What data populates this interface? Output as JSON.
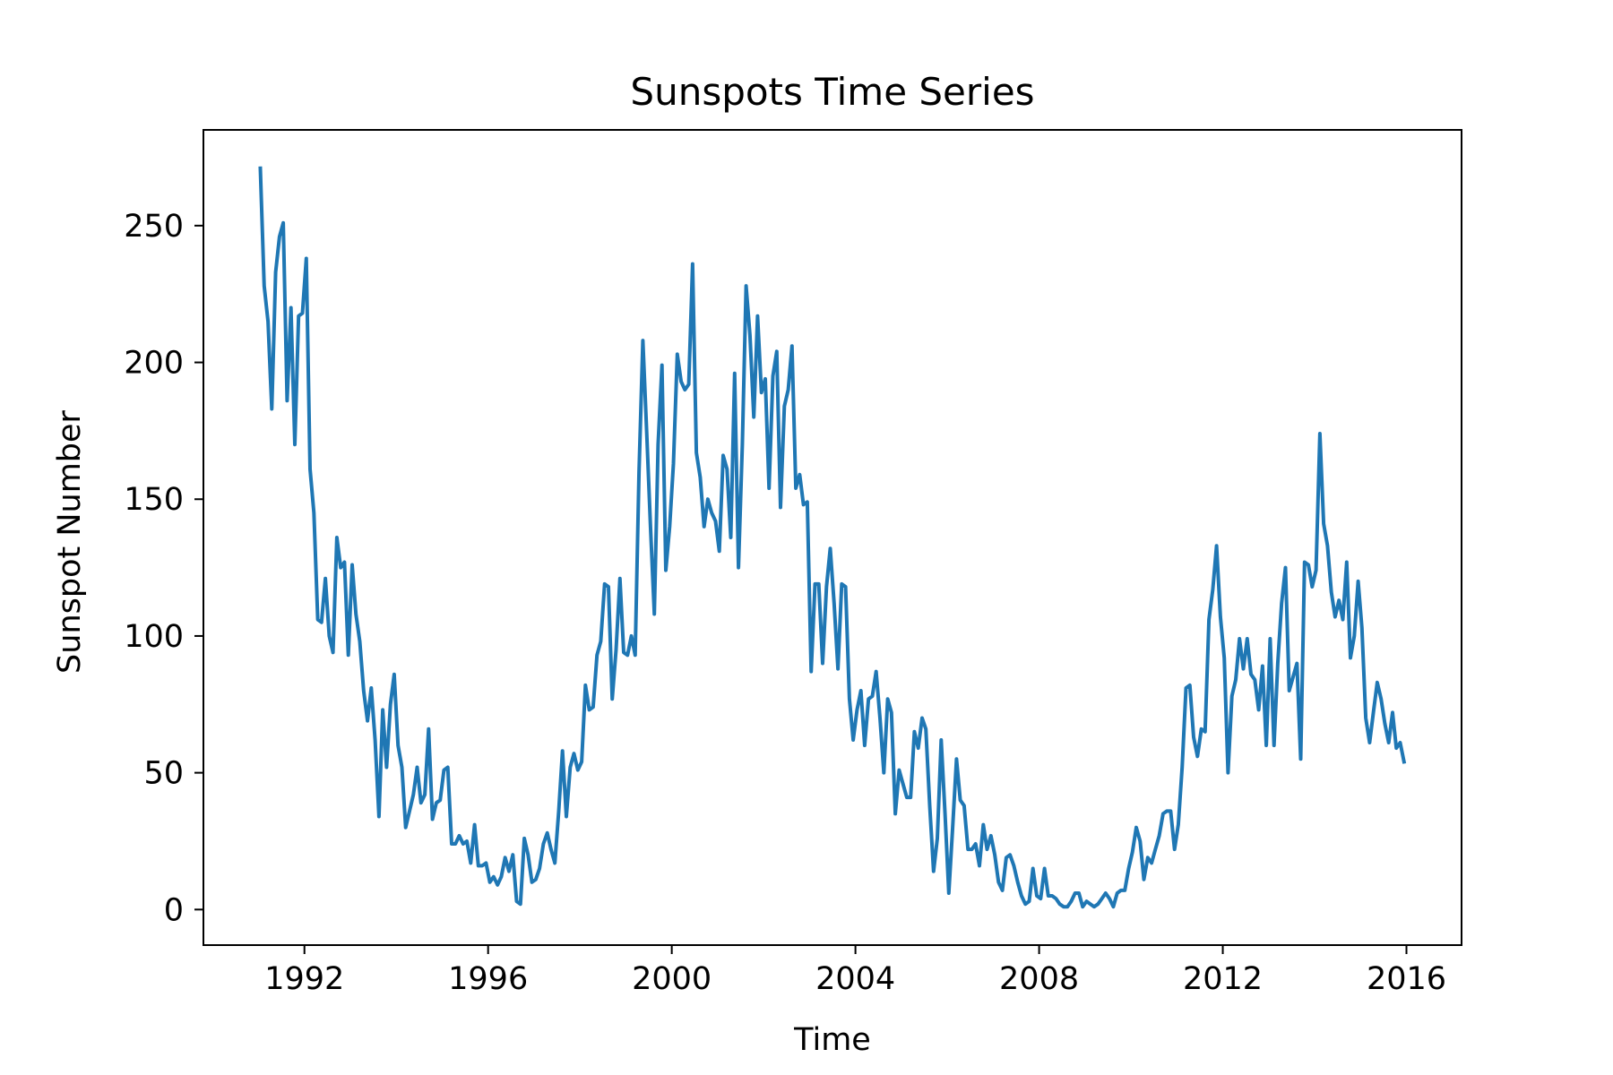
{
  "chart_data": {
    "type": "line",
    "title": "Sunspots Time Series",
    "xlabel": "Time",
    "ylabel": "Sunspot Number",
    "xlim": [
      1989.8,
      2017.2
    ],
    "ylim": [
      -13,
      285
    ],
    "x_ticks": [
      1992,
      1996,
      2000,
      2004,
      2008,
      2012,
      2016
    ],
    "y_ticks": [
      0,
      50,
      100,
      150,
      200,
      250
    ],
    "grid": false,
    "line_color": "#1f77b4",
    "x_start": 1991.04,
    "x_step": 0.0833,
    "series": [
      {
        "values": [
          271,
          228,
          215,
          183,
          233,
          246,
          251,
          186,
          220,
          170,
          217,
          218,
          238,
          161,
          145,
          106,
          105,
          121,
          100,
          94,
          136,
          125,
          127,
          93,
          126,
          108,
          98,
          80,
          69,
          81,
          62,
          34,
          73,
          52,
          75,
          86,
          60,
          52,
          30,
          36,
          42,
          52,
          39,
          42,
          66,
          33,
          39,
          40,
          51,
          52,
          24,
          24,
          27,
          24,
          25,
          17,
          31,
          16,
          16,
          17,
          10,
          12,
          9,
          12,
          19,
          14,
          20,
          3,
          2,
          26,
          20,
          10,
          11,
          15,
          24,
          28,
          22,
          17,
          36,
          58,
          34,
          52,
          57,
          51,
          54,
          82,
          73,
          74,
          93,
          98,
          119,
          118,
          77,
          95,
          121,
          94,
          93,
          100,
          93,
          160,
          208,
          175,
          140,
          108,
          170,
          199,
          124,
          140,
          163,
          203,
          193,
          190,
          192,
          236,
          167,
          158,
          140,
          150,
          145,
          142,
          131,
          166,
          161,
          136,
          196,
          125,
          170,
          228,
          210,
          180,
          217,
          189,
          194,
          154,
          195,
          204,
          147,
          184,
          190,
          206,
          154,
          159,
          148,
          149,
          87,
          119,
          119,
          90,
          118,
          132,
          112,
          88,
          119,
          118,
          77,
          62,
          73,
          80,
          60,
          77,
          78,
          87,
          70,
          50,
          77,
          72,
          35,
          51,
          46,
          41,
          41,
          65,
          59,
          70,
          66,
          38,
          14,
          26,
          62,
          35,
          6,
          30,
          55,
          40,
          38,
          22,
          22,
          24,
          16,
          31,
          22,
          27,
          20,
          10,
          7,
          19,
          20,
          16,
          10,
          5,
          2,
          3,
          15,
          5,
          4,
          15,
          5,
          5,
          4,
          2,
          1,
          1,
          3,
          6,
          6,
          1,
          3,
          2,
          1,
          2,
          4,
          6,
          4,
          1,
          6,
          7,
          7,
          15,
          21,
          30,
          25,
          11,
          19,
          17,
          22,
          27,
          35,
          36,
          36,
          22,
          31,
          52,
          81,
          82,
          63,
          56,
          66,
          65,
          106,
          117,
          133,
          107,
          92,
          50,
          78,
          84,
          99,
          88,
          99,
          86,
          84,
          73,
          89,
          60,
          99,
          60,
          90,
          112,
          125,
          80,
          85,
          90,
          55,
          127,
          126,
          118,
          124,
          174,
          141,
          133,
          116,
          107,
          113,
          106,
          127,
          92,
          100,
          120,
          103,
          70,
          61,
          72,
          83,
          77,
          68,
          61,
          72,
          59,
          61,
          54
        ]
      }
    ]
  }
}
